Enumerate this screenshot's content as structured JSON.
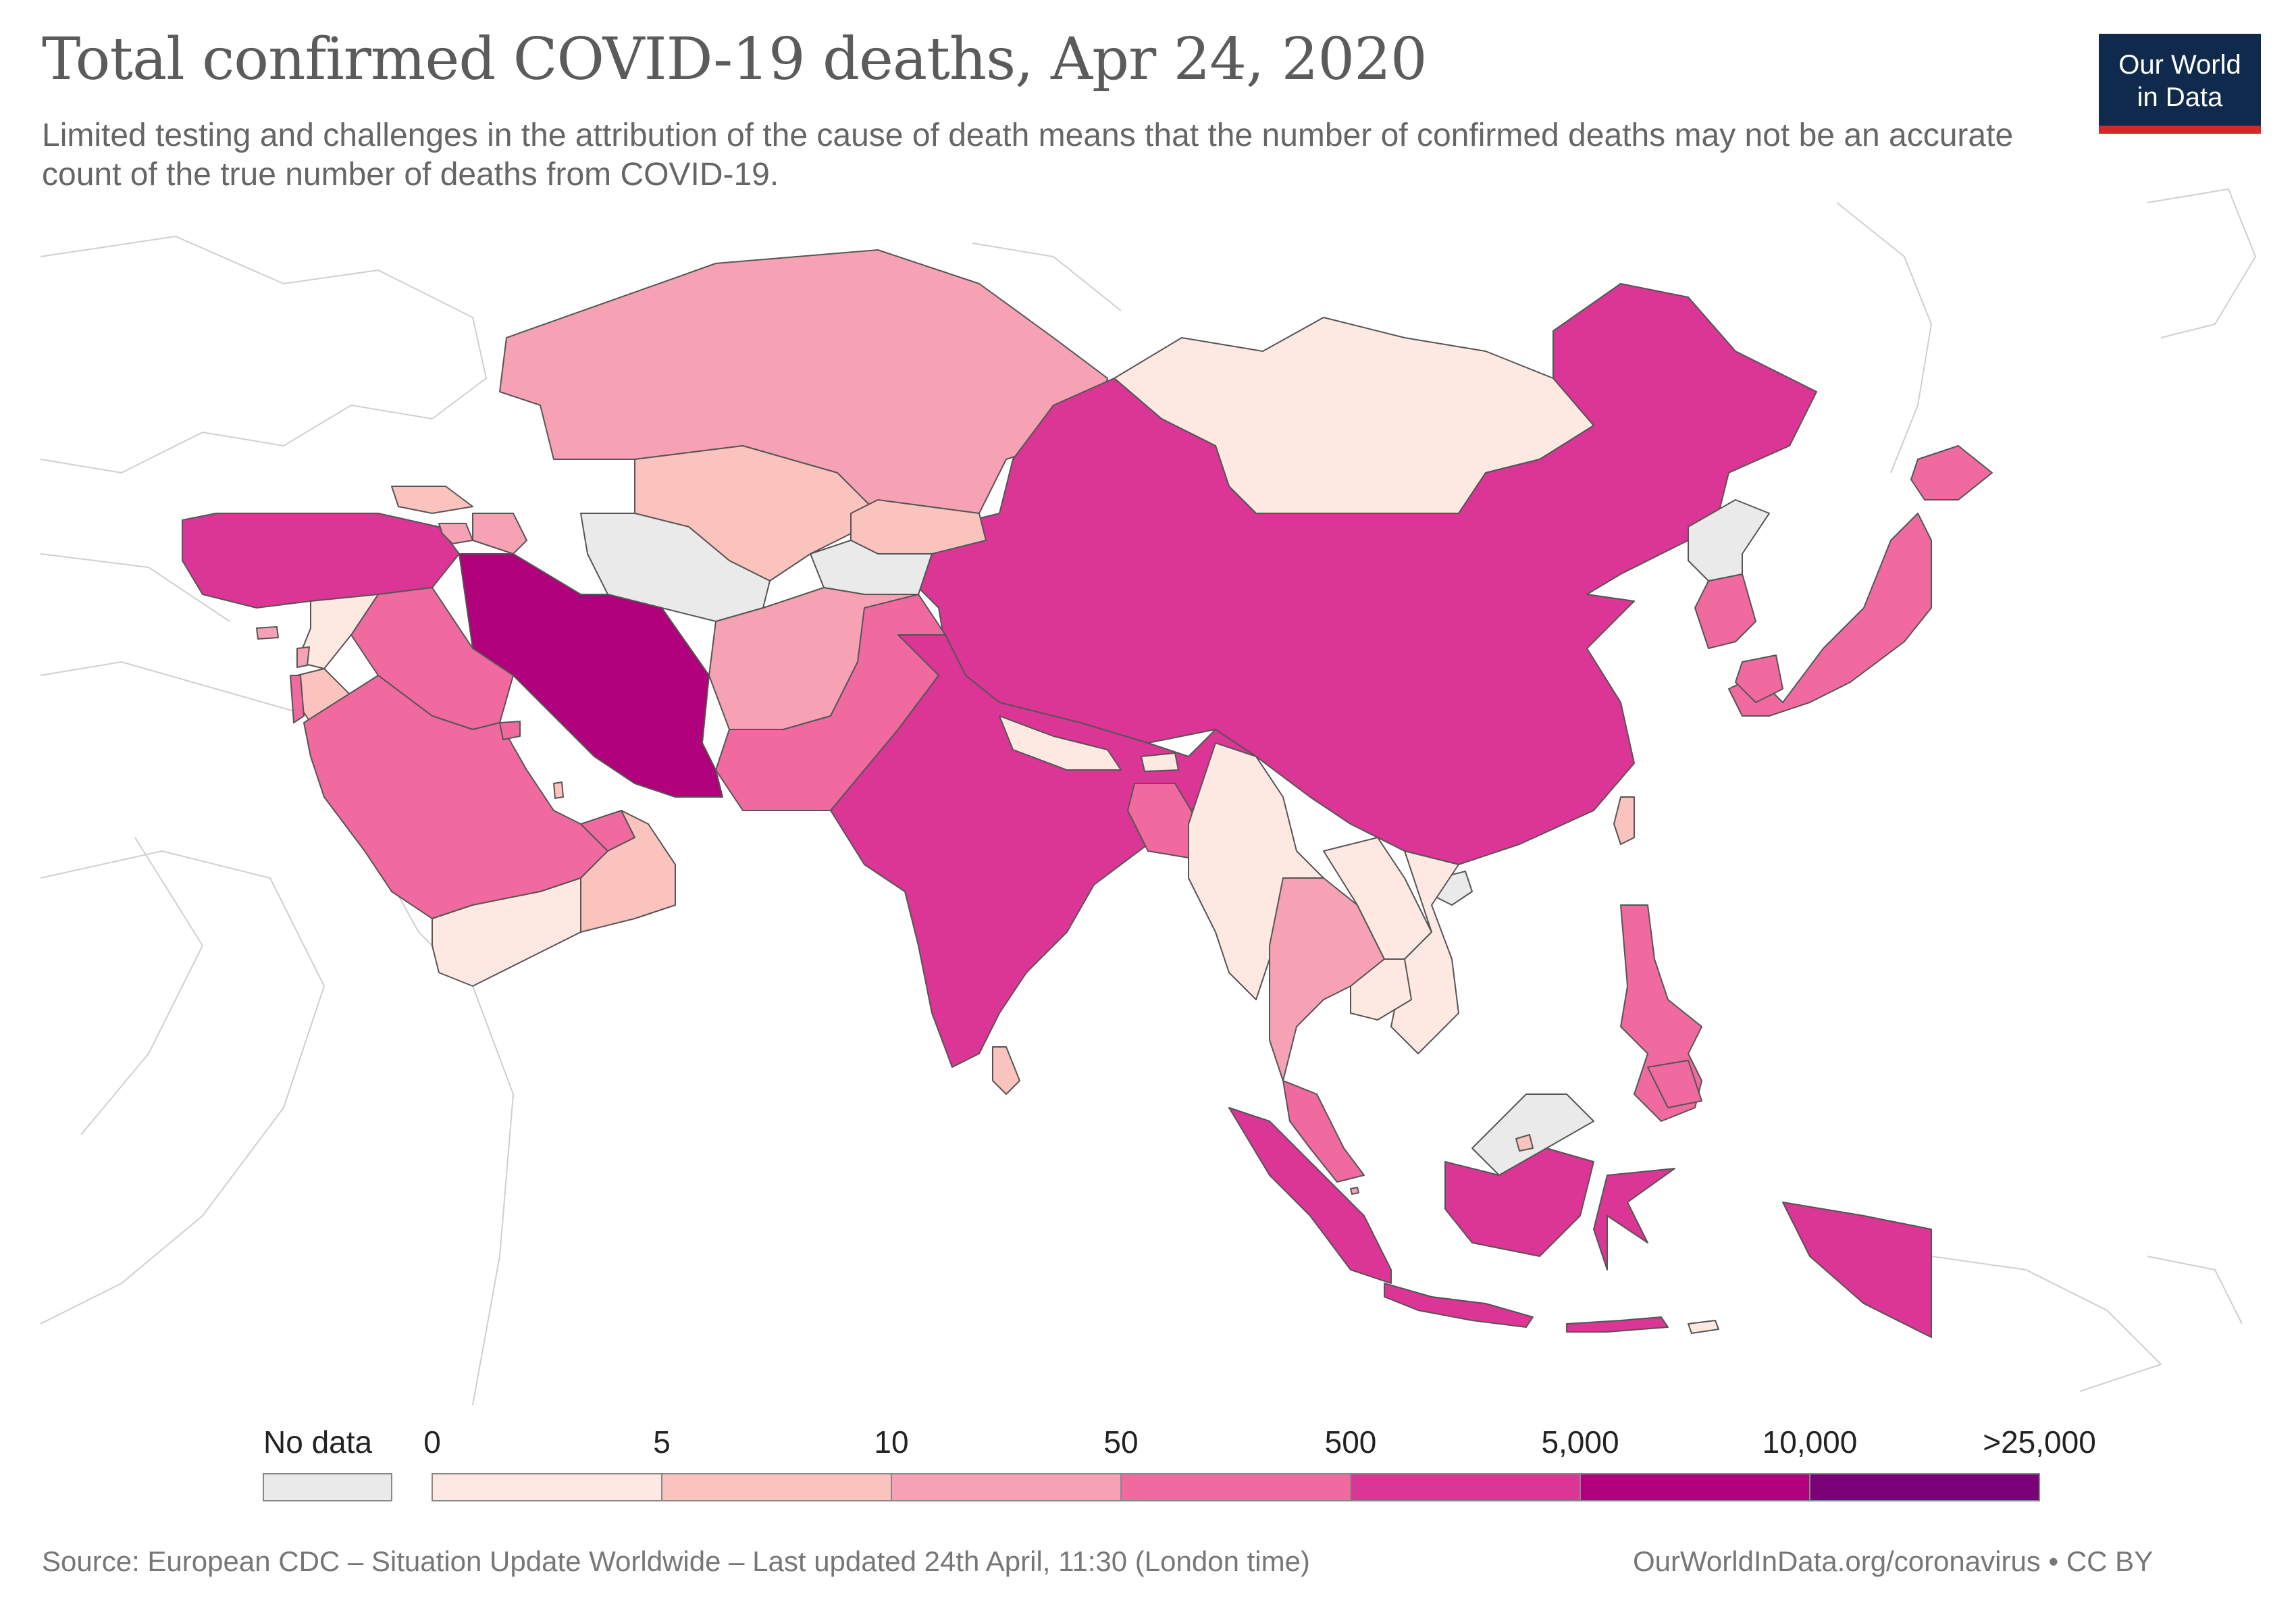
{
  "header": {
    "title": "Total confirmed COVID-19 deaths, Apr 24, 2020",
    "subtitle": "Limited testing and challenges in the attribution of the cause of death means that the number of confirmed deaths may not be an accurate count of the true number of deaths from COVID-19."
  },
  "logo": {
    "line1": "Our World",
    "line2": "in Data"
  },
  "colors": {
    "background_land": "#ffffff",
    "no_data": "#eaeaea",
    "logo_bg": "#0f2a4d",
    "logo_accent": "#d02a26"
  },
  "legend": {
    "no_data_label": "No data",
    "ticks": [
      "0",
      "5",
      "10",
      "50",
      "500",
      "5,000",
      "10,000",
      ">25,000"
    ],
    "bins": [
      {
        "from": "0",
        "to": "5",
        "color": "#fde9e1"
      },
      {
        "from": "5",
        "to": "10",
        "color": "#fbc3bd"
      },
      {
        "from": "10",
        "to": "50",
        "color": "#f7a2b4"
      },
      {
        "from": "50",
        "to": "500",
        "color": "#f06a9f"
      },
      {
        "from": "500",
        "to": "5,000",
        "color": "#db3595"
      },
      {
        "from": "5,000",
        "to": "10,000",
        "color": "#b0007c"
      },
      {
        "from": "10,000",
        "to": ">25,000",
        "color": "#7a0177"
      }
    ]
  },
  "regions": [
    {
      "name": "Kazakhstan",
      "bin": 2
    },
    {
      "name": "Mongolia",
      "bin": 0
    },
    {
      "name": "China",
      "bin": 4
    },
    {
      "name": "Uzbekistan",
      "bin": 1
    },
    {
      "name": "Kyrgyzstan",
      "bin": 1
    },
    {
      "name": "Turkmenistan",
      "bin": -1
    },
    {
      "name": "Tajikistan",
      "bin": -1
    },
    {
      "name": "Afghanistan",
      "bin": 2
    },
    {
      "name": "Pakistan",
      "bin": 3
    },
    {
      "name": "India",
      "bin": 4
    },
    {
      "name": "Nepal",
      "bin": 0
    },
    {
      "name": "Bhutan",
      "bin": 0
    },
    {
      "name": "Bangladesh",
      "bin": 3
    },
    {
      "name": "Myanmar",
      "bin": 0
    },
    {
      "name": "Thailand",
      "bin": 2
    },
    {
      "name": "Laos",
      "bin": 0
    },
    {
      "name": "Vietnam",
      "bin": 0
    },
    {
      "name": "Cambodia",
      "bin": 0
    },
    {
      "name": "Malaysia",
      "bin": 3
    },
    {
      "name": "Indonesia",
      "bin": 4
    },
    {
      "name": "Philippines",
      "bin": 3
    },
    {
      "name": "Japan",
      "bin": 3
    },
    {
      "name": "South Korea",
      "bin": 3
    },
    {
      "name": "North Korea",
      "bin": -1
    },
    {
      "name": "Taiwan",
      "bin": 1
    },
    {
      "name": "Sri Lanka",
      "bin": 1
    },
    {
      "name": "Iran",
      "bin": 5
    },
    {
      "name": "Turkey",
      "bin": 4
    },
    {
      "name": "Iraq",
      "bin": 3
    },
    {
      "name": "Saudi Arabia",
      "bin": 3
    },
    {
      "name": "Yemen",
      "bin": 0
    },
    {
      "name": "Oman",
      "bin": 1
    },
    {
      "name": "United Arab Emirates",
      "bin": 3
    },
    {
      "name": "Qatar",
      "bin": 1
    },
    {
      "name": "Kuwait",
      "bin": 3
    },
    {
      "name": "Syria",
      "bin": 0
    },
    {
      "name": "Jordan",
      "bin": 1
    },
    {
      "name": "Israel",
      "bin": 3
    },
    {
      "name": "Lebanon",
      "bin": 2
    },
    {
      "name": "Georgia",
      "bin": 1
    },
    {
      "name": "Armenia",
      "bin": 2
    },
    {
      "name": "Azerbaijan",
      "bin": 2
    },
    {
      "name": "Cyprus",
      "bin": 2
    },
    {
      "name": "Timor-Leste",
      "bin": 0
    },
    {
      "name": "Brunei",
      "bin": 1
    },
    {
      "name": "Singapore",
      "bin": 2
    }
  ],
  "footer": {
    "source": "Source: European CDC – Situation Update Worldwide – Last updated 24th April, 11:30 (London time)",
    "credit": "OurWorldInData.org/coronavirus • CC BY"
  }
}
